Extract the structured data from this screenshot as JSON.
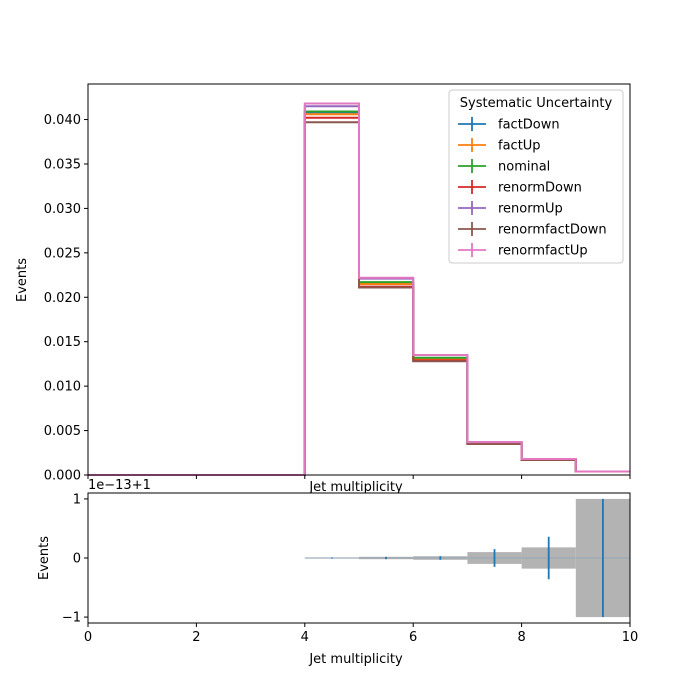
{
  "chart_data": [
    {
      "type": "histogram",
      "panel": "main",
      "xlabel": "Jet multiplicity",
      "ylabel": "Events",
      "xlim": [
        0,
        10
      ],
      "ylim": [
        0,
        0.044
      ],
      "yticks": [
        0.0,
        0.005,
        0.01,
        0.015,
        0.02,
        0.025,
        0.03,
        0.035,
        0.04
      ],
      "ytick_labels": [
        "0.000",
        "0.005",
        "0.010",
        "0.015",
        "0.020",
        "0.025",
        "0.030",
        "0.035",
        "0.040"
      ],
      "bin_edges": [
        0,
        1,
        2,
        3,
        4,
        5,
        6,
        7,
        8,
        9,
        10
      ],
      "legend": {
        "title": "Systematic Uncertainty",
        "position": "top-right"
      },
      "series": [
        {
          "name": "factDown",
          "color": "#1f77b4",
          "values": [
            0,
            0,
            0,
            0,
            0.0408,
            0.0216,
            0.0131,
            0.0036,
            0.0017,
            0.0004
          ]
        },
        {
          "name": "factUp",
          "color": "#ff7f0e",
          "values": [
            0,
            0,
            0,
            0,
            0.0406,
            0.0215,
            0.0131,
            0.0036,
            0.0017,
            0.0004
          ]
        },
        {
          "name": "nominal",
          "color": "#2ca02c",
          "values": [
            0,
            0,
            0,
            0,
            0.0409,
            0.0217,
            0.0132,
            0.0036,
            0.0017,
            0.0004
          ]
        },
        {
          "name": "renormDown",
          "color": "#d62728",
          "values": [
            0,
            0,
            0,
            0,
            0.0402,
            0.0212,
            0.0129,
            0.0035,
            0.0017,
            0.0004
          ]
        },
        {
          "name": "renormUp",
          "color": "#9467bd",
          "values": [
            0,
            0,
            0,
            0,
            0.0415,
            0.0221,
            0.0135,
            0.0037,
            0.0018,
            0.0004
          ]
        },
        {
          "name": "renormfactDown",
          "color": "#8c564b",
          "values": [
            0,
            0,
            0,
            0,
            0.0397,
            0.0211,
            0.0128,
            0.0035,
            0.0017,
            0.0004
          ]
        },
        {
          "name": "renormfactUp",
          "color": "#e377c2",
          "values": [
            0,
            0,
            0,
            0,
            0.0418,
            0.0222,
            0.0135,
            0.0037,
            0.0018,
            0.0004
          ]
        }
      ]
    },
    {
      "type": "ratio",
      "panel": "ratio",
      "xlabel": "Jet multiplicity",
      "ylabel": "Events",
      "offset_label": "1e−13+1",
      "xlim": [
        0,
        10
      ],
      "ylim": [
        -1.1,
        1.1
      ],
      "xticks": [
        0,
        2,
        4,
        6,
        8,
        10
      ],
      "xtick_labels": [
        "0",
        "2",
        "4",
        "6",
        "8",
        "10"
      ],
      "yticks": [
        -1,
        0,
        1
      ],
      "ytick_labels": [
        "−1",
        "0",
        "1"
      ],
      "points": {
        "color": "#1f77b4",
        "x": [
          4.5,
          5.5,
          6.5,
          7.5,
          8.5,
          9.5
        ],
        "y": [
          0,
          0,
          0,
          0,
          0,
          0
        ],
        "yerr": [
          0.01,
          0.02,
          0.03,
          0.15,
          0.36,
          1.0
        ]
      },
      "band": {
        "color": "#b3b3b3",
        "x_edges": [
          4,
          5,
          6,
          7,
          8,
          9,
          10
        ],
        "half_width": [
          0.01,
          0.02,
          0.03,
          0.1,
          0.18,
          1.0
        ]
      }
    }
  ]
}
